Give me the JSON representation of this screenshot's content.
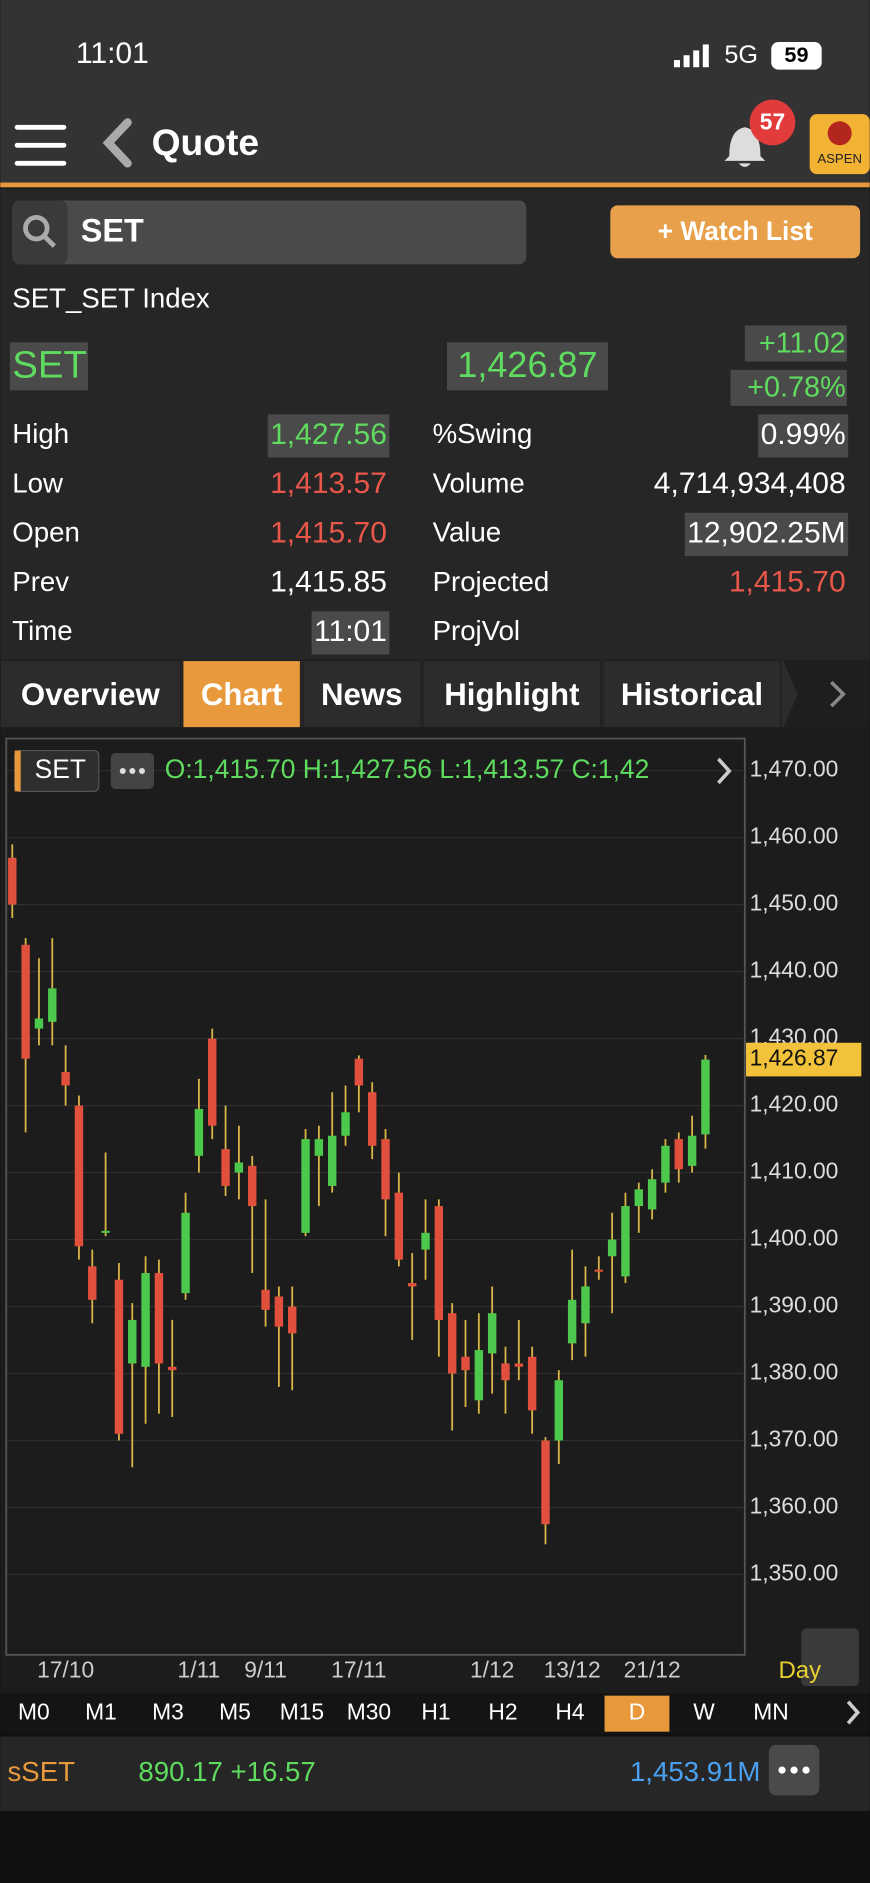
{
  "status_bar": {
    "time": "11:01",
    "network": "5G",
    "battery": "59"
  },
  "header": {
    "title": "Quote",
    "notifications": "57",
    "logo": "ASPEN"
  },
  "search": {
    "query": "SET",
    "button": "+ Watch List"
  },
  "quote": {
    "name": "SET_SET Index",
    "symbol": "SET",
    "last": "1,426.87",
    "change": "+11.02",
    "change_pct": "+0.78%",
    "left_fields": [
      {
        "label": "High",
        "value": "1,427.56",
        "color": "#5fdc5f",
        "highlight": true
      },
      {
        "label": "Low",
        "value": "1,413.57",
        "color": "#e8574a",
        "highlight": false
      },
      {
        "label": "Open",
        "value": "1,415.70",
        "color": "#e8574a",
        "highlight": false
      },
      {
        "label": "Prev",
        "value": "1,415.85",
        "color": "#ffffff",
        "highlight": false
      },
      {
        "label": "Time",
        "value": "11:01",
        "color": "#ffffff",
        "highlight": true
      }
    ],
    "right_fields": [
      {
        "label": "%Swing",
        "value": "0.99%",
        "color": "#ffffff",
        "highlight": true
      },
      {
        "label": "Volume",
        "value": "4,714,934,408",
        "color": "#ffffff",
        "highlight": false
      },
      {
        "label": "Value",
        "value": "12,902.25M",
        "color": "#ffffff",
        "highlight": true
      },
      {
        "label": "Projected",
        "value": "1,415.70",
        "color": "#e8574a",
        "highlight": false
      },
      {
        "label": "ProjVol",
        "value": null,
        "color": "#ffffff",
        "highlight": false
      }
    ]
  },
  "tabs": [
    "Overview",
    "Chart",
    "News",
    "Highlight",
    "Historical"
  ],
  "active_tab": 1,
  "chart_data": {
    "type": "candlestick",
    "symbol": "SET",
    "legend": "O:1,415.70 H:1,427.56 L:1,413.57 C:1,42",
    "period": "Day",
    "categories": [
      null,
      null,
      null,
      null,
      "17/10",
      null,
      null,
      null,
      null,
      null,
      null,
      null,
      null,
      null,
      "1/11",
      null,
      null,
      null,
      null,
      "9/11",
      null,
      null,
      null,
      null,
      null,
      null,
      "17/11",
      null,
      null,
      null,
      null,
      null,
      null,
      null,
      null,
      null,
      "1/12",
      null,
      null,
      null,
      null,
      null,
      "13/12",
      null,
      null,
      null,
      null,
      null,
      "21/12",
      null,
      null,
      null,
      null
    ],
    "open": [
      1457,
      1444,
      1431.5,
      1432.5,
      1425,
      1420,
      1396,
      1401,
      1394,
      1381.5,
      1381,
      1395,
      1381,
      1392,
      1412.5,
      1430,
      1413.5,
      1410,
      1411,
      1392.5,
      1391.5,
      1390,
      1401,
      1412.5,
      1408,
      1415.5,
      1427,
      1422,
      1415,
      1407,
      1393.5,
      1398.5,
      1405,
      1389,
      1382.5,
      1376,
      1383,
      1381.5,
      1381.5,
      1382.5,
      1370,
      1370,
      1384.5,
      1387.5,
      1395.5,
      1397.5,
      1394.5,
      1405,
      1404.5,
      1408.5,
      1415,
      1411,
      1415.7
    ],
    "high": [
      1459,
      1445,
      1442,
      1445,
      1429,
      1421.5,
      1398.5,
      1413,
      1396.5,
      1390.5,
      1397.5,
      1397,
      1388,
      1407,
      1424,
      1431.5,
      1420,
      1417,
      1412.5,
      1406,
      1393,
      1393,
      1416.5,
      1417,
      1422,
      1423,
      1427.5,
      1423.5,
      1416.5,
      1410,
      1398,
      1406,
      1406,
      1390.5,
      1388,
      1389,
      1393,
      1384,
      1388,
      1384,
      1370.5,
      1380.5,
      1398.5,
      1396,
      1397.5,
      1404,
      1407,
      1408.5,
      1410.5,
      1415,
      1416,
      1418.5,
      1427.56
    ],
    "low": [
      1448,
      1416,
      1429,
      1429,
      1420,
      1397,
      1387.5,
      1400.5,
      1370,
      1366,
      1372.5,
      1374,
      1373.5,
      1391,
      1410,
      1415,
      1406.5,
      1406,
      1395,
      1387,
      1378,
      1377.5,
      1400.5,
      1405,
      1407,
      1414,
      1419,
      1412,
      1400.5,
      1396,
      1385,
      1394,
      1382.5,
      1371.5,
      1375,
      1374,
      1377,
      1374,
      1379,
      1371,
      1354.5,
      1366.5,
      1382,
      1382.5,
      1394,
      1389,
      1393.5,
      1401,
      1403,
      1407,
      1408.5,
      1410,
      1413.57
    ],
    "close": [
      1450,
      1427,
      1433,
      1437.5,
      1423,
      1399,
      1391,
      1401.3,
      1371,
      1388,
      1395,
      1381.5,
      1380.5,
      1404,
      1419.5,
      1417,
      1408,
      1411.5,
      1405,
      1389.5,
      1387,
      1386,
      1415,
      1415,
      1415.5,
      1419,
      1423,
      1414,
      1406,
      1397,
      1393,
      1401,
      1388,
      1380,
      1380.5,
      1383.5,
      1389,
      1379,
      1381,
      1374.5,
      1357.5,
      1379,
      1391,
      1393,
      1395.2,
      1400,
      1405,
      1407.5,
      1409,
      1414,
      1410.5,
      1415.5,
      1426.87
    ],
    "up_color": "#4cc94c",
    "down_color": "#e0503c",
    "wick_color": "#d9b447",
    "ylim": [
      1338,
      1474.8
    ],
    "yticks": [
      {
        "value": 1350,
        "label": "1,350.00"
      },
      {
        "value": 1360,
        "label": "1,360.00"
      },
      {
        "value": 1370,
        "label": "1,370.00"
      },
      {
        "value": 1380,
        "label": "1,380.00"
      },
      {
        "value": 1390,
        "label": "1,390.00"
      },
      {
        "value": 1400,
        "label": "1,400.00"
      },
      {
        "value": 1410,
        "label": "1,410.00"
      },
      {
        "value": 1420,
        "label": "1,420.00"
      },
      {
        "value": 1430,
        "label": "1,430.00"
      },
      {
        "value": 1440,
        "label": "1,440.00"
      },
      {
        "value": 1450,
        "label": "1,450.00"
      },
      {
        "value": 1460,
        "label": "1,460.00"
      },
      {
        "value": 1470,
        "label": "1,470.00"
      }
    ],
    "last_price": {
      "value": 1426.87,
      "label": "1,426.87"
    },
    "grid": true
  },
  "timeframes": [
    "M0",
    "M1",
    "M3",
    "M5",
    "M15",
    "M30",
    "H1",
    "H2",
    "H4",
    "D",
    "W",
    "MN"
  ],
  "active_timeframe": 9,
  "footer": {
    "symbol": "sSET",
    "price": "890.17 +16.57",
    "value": "1,453.91M"
  }
}
